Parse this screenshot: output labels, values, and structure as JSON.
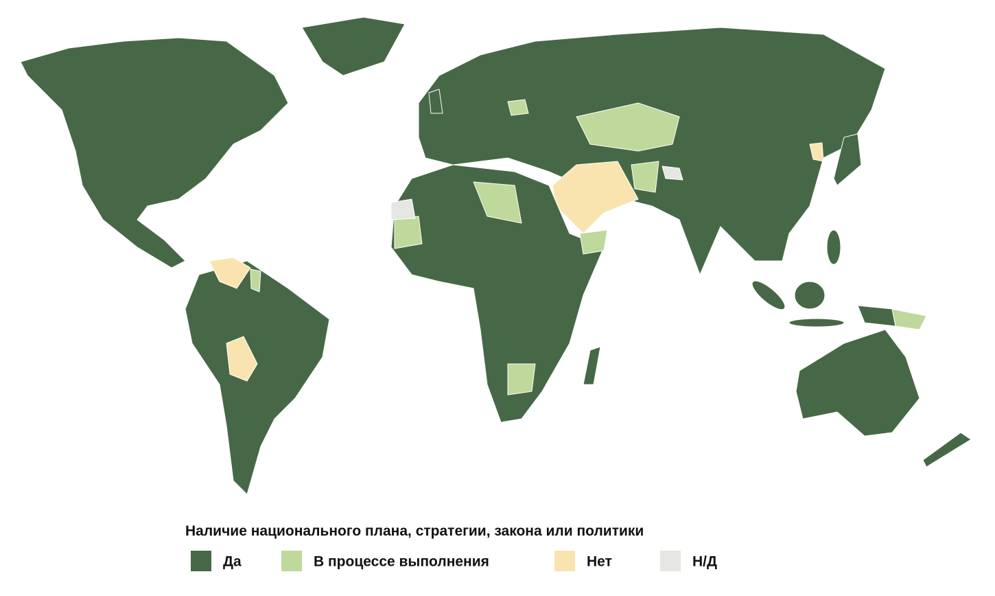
{
  "legend": {
    "title": "Наличие национального плана, стратегии, закона или политики",
    "items": [
      {
        "label": "Да",
        "color": "#476846"
      },
      {
        "label": "В процессе выполнения",
        "color": "#bfd89b"
      },
      {
        "label": "Нет",
        "color": "#f9e4b0"
      },
      {
        "label": "Н/Д",
        "color": "#e6e6e3"
      }
    ]
  }
}
